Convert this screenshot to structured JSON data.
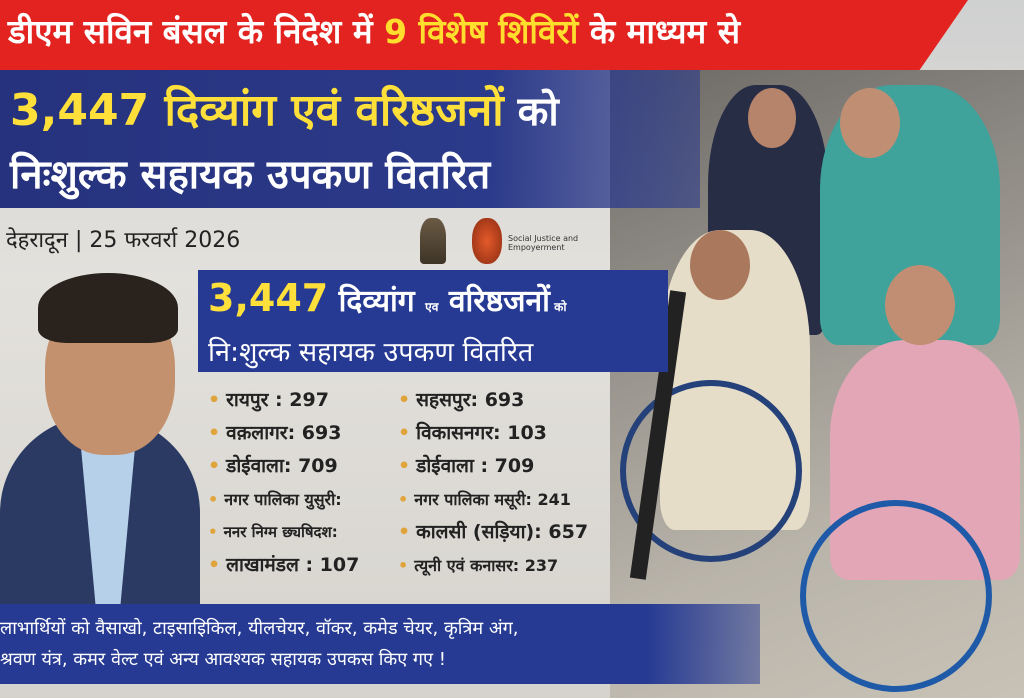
{
  "banner": {
    "prefix": "डीएम सविन बंसल के निदेश में ",
    "highlight": "9 विशेष शिविरों",
    "suffix": " के माध्यम से"
  },
  "headline": {
    "count": "3,447",
    "line1": " दिव्यांग एवं वरिष्ठजनों",
    "line1_end": " को",
    "line2": "निःशुल्क सहायक उपकण वितरित"
  },
  "dateline": "देहरादून | 25 फरवर्रा 2026",
  "logos": {
    "ministry": "Social Justice and Empoyerment"
  },
  "subheadline": {
    "count": "3,447",
    "w1": " दिव्यांग ",
    "w2": "एव",
    "w3": " वरिष्ठजनों",
    "w4": " को",
    "line2": "नि:शुल्क सहायक उपकण वितरित"
  },
  "camps": [
    "रायपुर : 297",
    "सहसपुर: 693",
    "वक़लागर: 693",
    "विकासनगर: 103",
    "डोईवाला: 709",
    "डोईवाला : 709",
    "नगर पालिका युसुरी:",
    "नगर पालिका मसूरी: 241",
    "ननर निग्म छ्यषिदश:",
    "कालसी (सड़िया): 657",
    "लाखामंडल : 107",
    "त्यूनी एवं कनासर: 237"
  ],
  "footer": {
    "line1": "लाभार्थियों को वैसाखो, टाइसाइिकिल, यीलचेयर, वॉकर, कमेड चेयर, कृत्रिम अंग,",
    "line2": "श्रवण यंत्र, कमर वेल्ट एवं अन्य आवश्यक सहायक उपकस किए गए !"
  },
  "colors": {
    "banner_red": "#e2231f",
    "navy": "#263a93",
    "highlight_yellow": "#ffe03a"
  }
}
